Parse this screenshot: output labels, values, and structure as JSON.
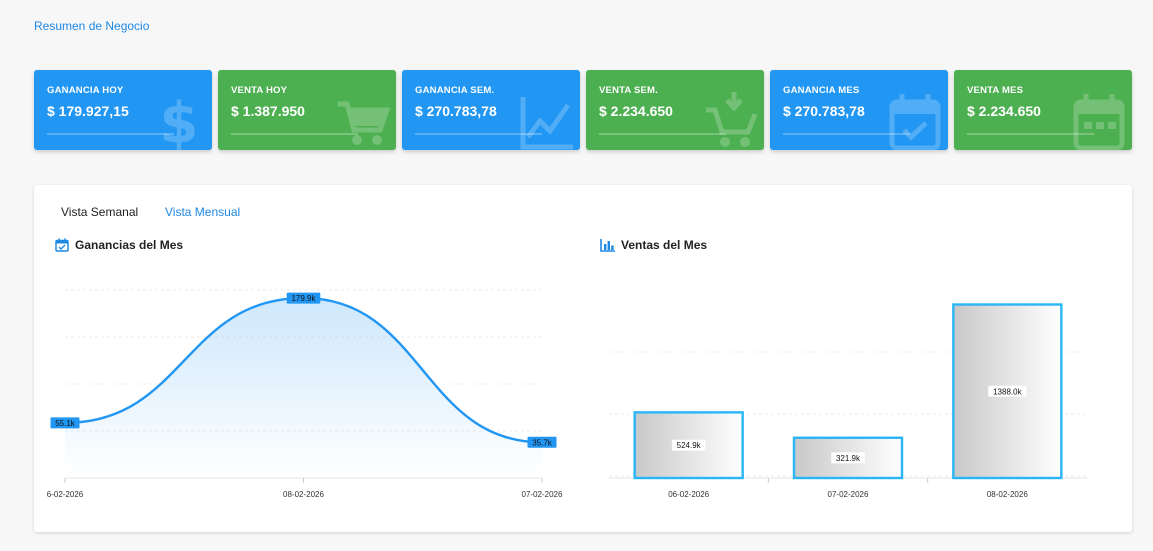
{
  "header": {
    "link_label": "Resumen de Negocio"
  },
  "cards": [
    {
      "title": "GANANCIA HOY",
      "value": "$ 179.927,15",
      "color": "blue",
      "icon": "dollar-icon"
    },
    {
      "title": "VENTA HOY",
      "value": "$ 1.387.950",
      "color": "green",
      "icon": "cart-icon"
    },
    {
      "title": "GANANCIA SEM.",
      "value": "$ 270.783,78",
      "color": "blue",
      "icon": "trend-icon"
    },
    {
      "title": "VENTA SEM.",
      "value": "$ 2.234.650",
      "color": "green",
      "icon": "cart-download-icon"
    },
    {
      "title": "GANANCIA MES",
      "value": "$ 270.783,78",
      "color": "blue",
      "icon": "calendar-check-icon"
    },
    {
      "title": "VENTA MES",
      "value": "$ 2.234.650",
      "color": "green",
      "icon": "calendar-icon"
    }
  ],
  "colors": {
    "blue": "#2196f3",
    "green": "#4caf50",
    "accent": "#1e88e5",
    "bar_border": "#29b6f6"
  },
  "tabs": [
    {
      "label": "Vista Semanal",
      "active": false
    },
    {
      "label": "Vista Mensual",
      "active": true
    }
  ],
  "sections": {
    "left_title": "Ganancias del Mes",
    "left_icon": "calendar-check-icon",
    "right_title": "Ventas del Mes",
    "right_icon": "bar-chart-icon"
  },
  "chart_data": [
    {
      "type": "area",
      "title": "Ganancias del Mes",
      "categories": [
        "6-02-2026",
        "08-02-2026",
        "07-02-2026"
      ],
      "values": [
        55.1,
        179.9,
        35.7
      ],
      "data_labels": [
        "55.1k",
        "179.9k",
        "35.7k"
      ],
      "ylim": [
        0,
        200
      ],
      "grid": true,
      "color": "#2196f3"
    },
    {
      "type": "bar",
      "title": "Ventas del Mes",
      "categories": [
        "06-02-2026",
        "07-02-2026",
        "08-02-2026"
      ],
      "values": [
        524.9,
        321.9,
        1388.0
      ],
      "data_labels": [
        "524.9k",
        "321.9k",
        "1388.0k"
      ],
      "ylim": [
        0,
        1600
      ],
      "grid": true,
      "color": "#29b6f6"
    }
  ]
}
